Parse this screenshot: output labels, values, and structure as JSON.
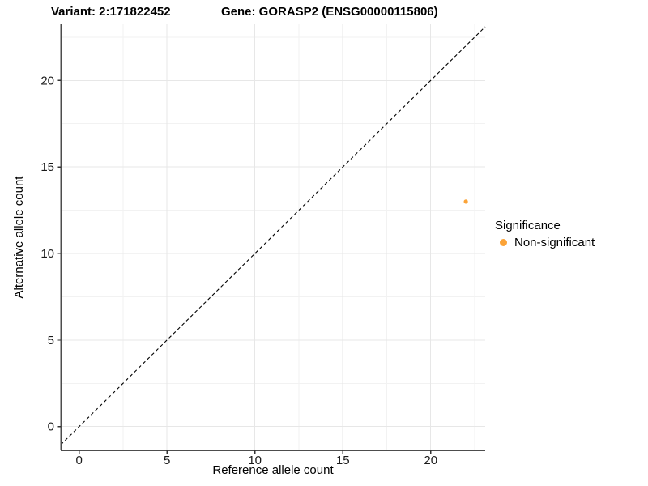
{
  "chart_data": {
    "type": "scatter",
    "title_left": "Variant: 2:171822452",
    "title_right": "Gene: GORASP2 (ENSG00000115806)",
    "xlabel": "Reference allele count",
    "ylabel": "Alternative allele count",
    "xlim": [
      -1.046,
      23.101
    ],
    "ylim": [
      -1.371,
      23.243
    ],
    "x_ticks": [
      0,
      5,
      10,
      15,
      20
    ],
    "y_ticks": [
      0,
      5,
      10,
      15,
      20
    ],
    "x_minor_gridlines": [
      2.5,
      7.5,
      12.5,
      17.5,
      22.5
    ],
    "y_minor_gridlines": [
      2.5,
      7.5,
      12.5,
      17.5,
      22.5
    ],
    "grid": "on",
    "identity_line": {
      "style": "dashed",
      "slope": 1,
      "intercept": 0,
      "color": "#000000"
    },
    "series": [
      {
        "name": "Non-significant",
        "color": "#FBA338",
        "point_radius": 2.6,
        "points": [
          {
            "x": 22,
            "y": 13
          }
        ]
      }
    ],
    "legend": {
      "title": "Significance",
      "position": "right",
      "items": [
        {
          "label": "Non-significant",
          "color": "#FBA338"
        }
      ]
    },
    "colors": {
      "grid_major": "#E7E7E7",
      "grid_minor": "#F2F2F2",
      "axis_line": "#4D4D4D",
      "tick_mark": "#333333",
      "tick_text": "#1A1A1A"
    }
  }
}
